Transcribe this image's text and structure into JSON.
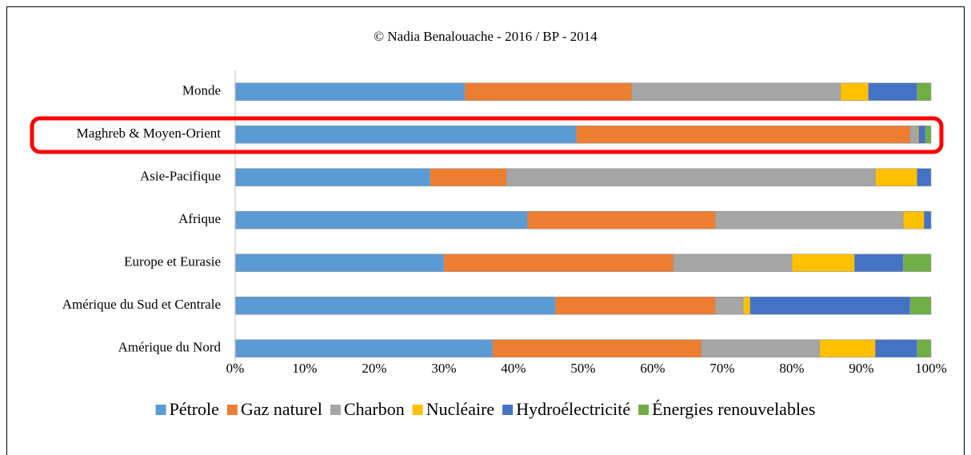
{
  "chart_data": {
    "type": "stacked_bar_horizontal",
    "title": "© Nadia Benalouache - 2016 / BP - 2014",
    "categories": [
      "Monde",
      "Maghreb & Moyen-Orient",
      "Asie-Pacifique",
      "Afrique",
      "Europe et Eurasie",
      "Amérique du Sud et Centrale",
      "Amérique du Nord"
    ],
    "series": [
      {
        "name": "Pétrole",
        "color": "#5b9bd5",
        "values": [
          33,
          49,
          28,
          42,
          30,
          46,
          37
        ]
      },
      {
        "name": "Gaz naturel",
        "color": "#ed7d31",
        "values": [
          24,
          48,
          11,
          27,
          33,
          23,
          30
        ]
      },
      {
        "name": "Charbon",
        "color": "#a5a5a5",
        "values": [
          30,
          1,
          53,
          27,
          17,
          4,
          17
        ]
      },
      {
        "name": "Nucléaire",
        "color": "#ffc000",
        "values": [
          4,
          0.2,
          6,
          3,
          9,
          1,
          8
        ]
      },
      {
        "name": "Hydroélectricité",
        "color": "#4472c4",
        "values": [
          7,
          1,
          2,
          1,
          7,
          23,
          6
        ]
      },
      {
        "name": "Énergies renouvelables",
        "color": "#70ad47",
        "values": [
          2,
          0.8,
          0,
          0,
          4,
          3,
          2
        ]
      }
    ],
    "xlim": [
      0,
      100
    ],
    "xticks": [
      {
        "value": 0,
        "label": "0%"
      },
      {
        "value": 10,
        "label": "10%"
      },
      {
        "value": 20,
        "label": "20%"
      },
      {
        "value": 30,
        "label": "30%"
      },
      {
        "value": 40,
        "label": "40%"
      },
      {
        "value": 50,
        "label": "50%"
      },
      {
        "value": 60,
        "label": "60%"
      },
      {
        "value": 70,
        "label": "70%"
      },
      {
        "value": 80,
        "label": "80%"
      },
      {
        "value": 90,
        "label": "90%"
      },
      {
        "value": 100,
        "label": "100%"
      }
    ],
    "grid": false,
    "legend": "bottom"
  }
}
